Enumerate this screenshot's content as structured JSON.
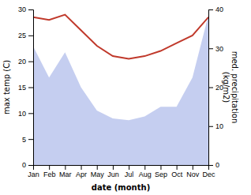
{
  "chart_data": {
    "type": "line",
    "xlabel": "date (month)",
    "ylabel": "max temp (C)",
    "y2label": "med. precipitation\n(kg/m2)",
    "categories": [
      "Jan",
      "Feb",
      "Mar",
      "Apr",
      "May",
      "Jun",
      "Jul",
      "Aug",
      "Sep",
      "Oct",
      "Nov",
      "Dec"
    ],
    "series": [
      {
        "type": "area",
        "axis": "y2",
        "color": "#c5cef0",
        "values": [
          30.5,
          22.5,
          29.0,
          20.0,
          14.0,
          12.0,
          11.5,
          12.5,
          15.0,
          15.0,
          22.5,
          38.5
        ]
      },
      {
        "type": "line",
        "color": "#c0392b",
        "values": [
          28.5,
          28.0,
          29.0,
          26.0,
          23.0,
          21.0,
          20.5,
          21.0,
          22.0,
          23.5,
          25.0,
          28.5
        ]
      }
    ],
    "ylim": [
      0,
      30
    ],
    "yticks": [
      0,
      5,
      10,
      15,
      20,
      25,
      30
    ],
    "y2lim": [
      0,
      40
    ],
    "y2ticks": [
      0,
      10,
      20,
      30,
      40
    ],
    "grid": false
  }
}
